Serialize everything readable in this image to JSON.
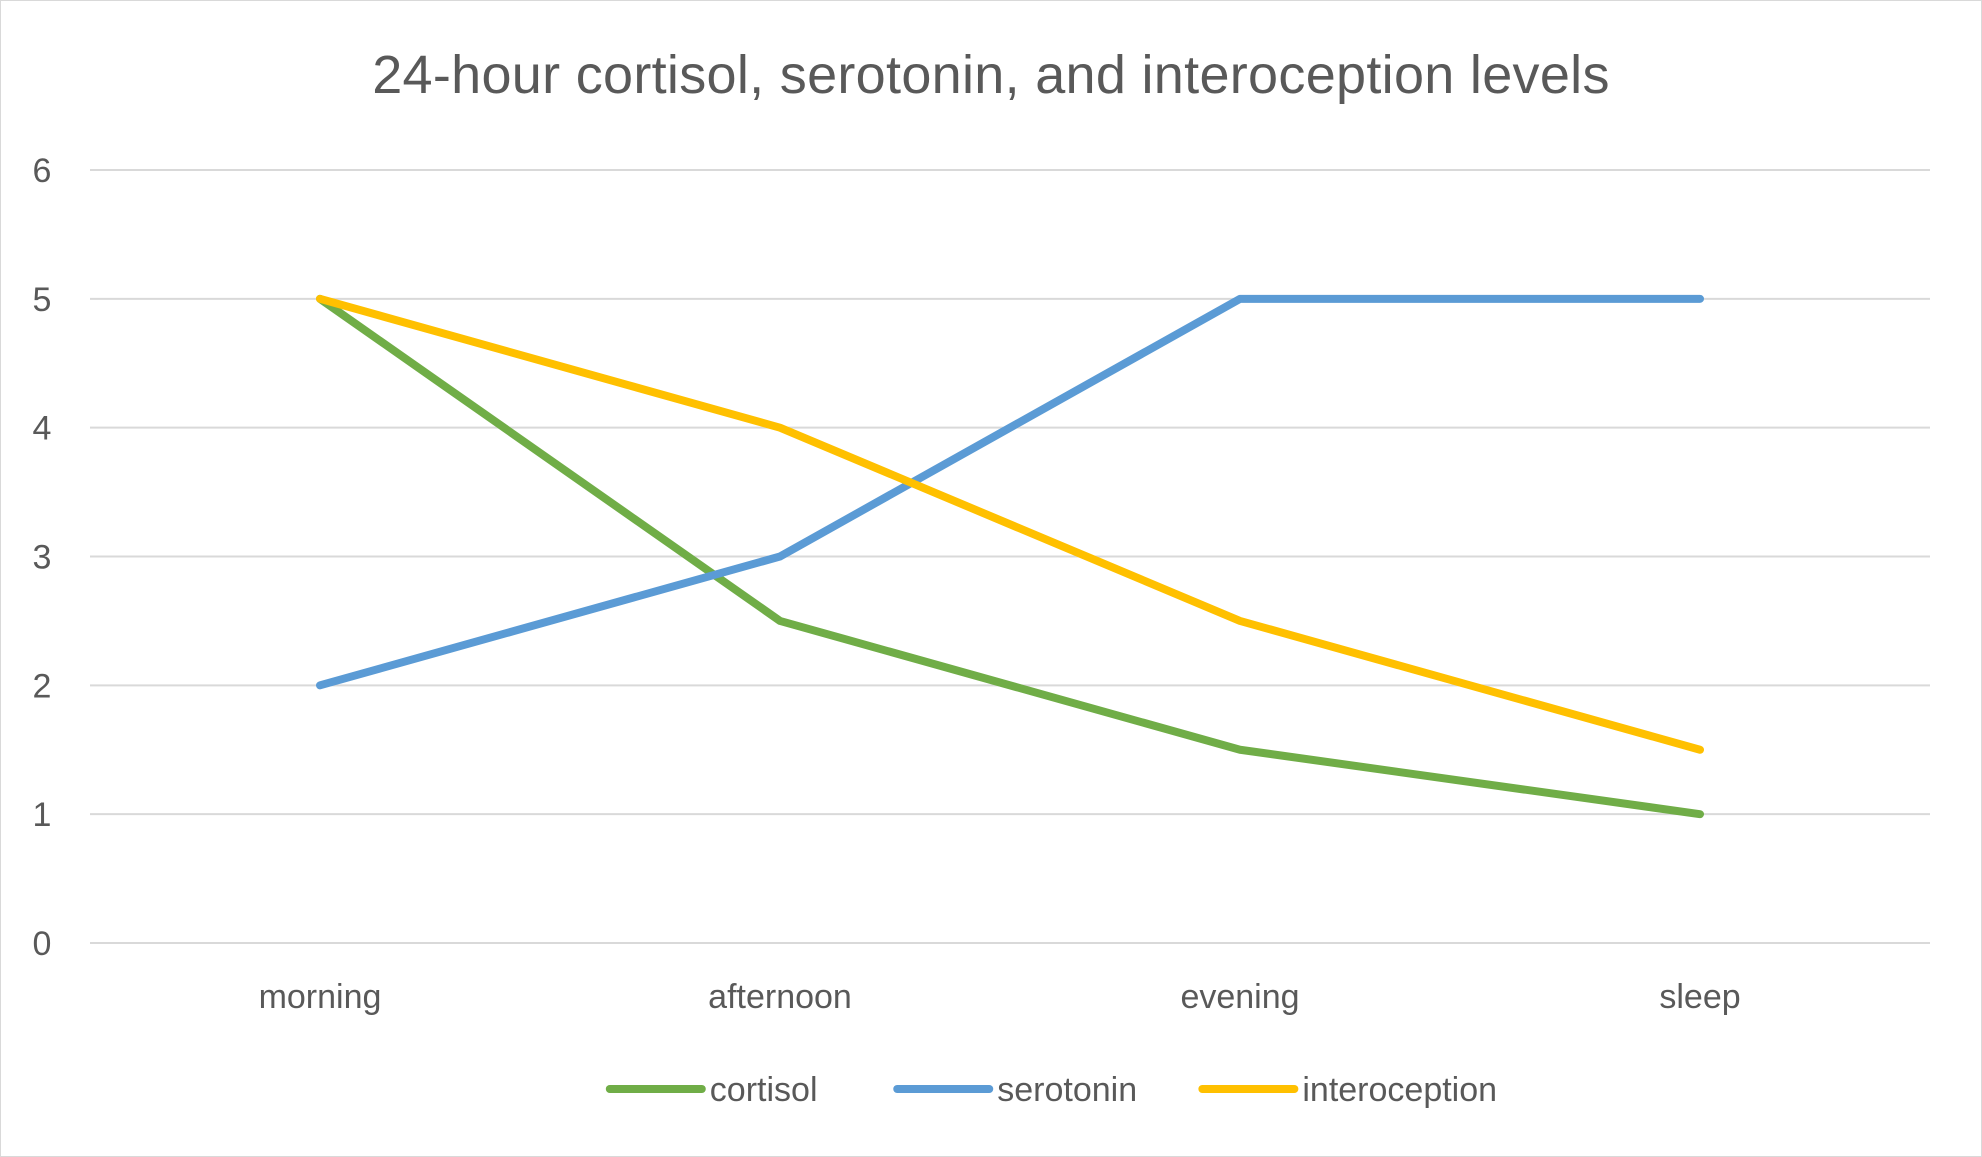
{
  "chart_data": {
    "type": "line",
    "title": "24-hour cortisol, serotonin, and interoception levels",
    "xlabel": "",
    "ylabel": "",
    "categories": [
      "morning",
      "afternoon",
      "evening",
      "sleep"
    ],
    "ylim": [
      0,
      6
    ],
    "yticks": [
      "0",
      "1",
      "2",
      "3",
      "4",
      "5",
      "6"
    ],
    "grid": true,
    "legend_position": "bottom",
    "series": [
      {
        "name": "cortisol",
        "color": "#70ad47",
        "values": [
          5,
          2.5,
          1.5,
          1
        ]
      },
      {
        "name": "serotonin",
        "color": "#5b9bd5",
        "values": [
          2,
          3,
          5,
          5
        ]
      },
      {
        "name": "interoception",
        "color": "#ffc000",
        "values": [
          5,
          4,
          2.5,
          1.5
        ]
      }
    ]
  }
}
